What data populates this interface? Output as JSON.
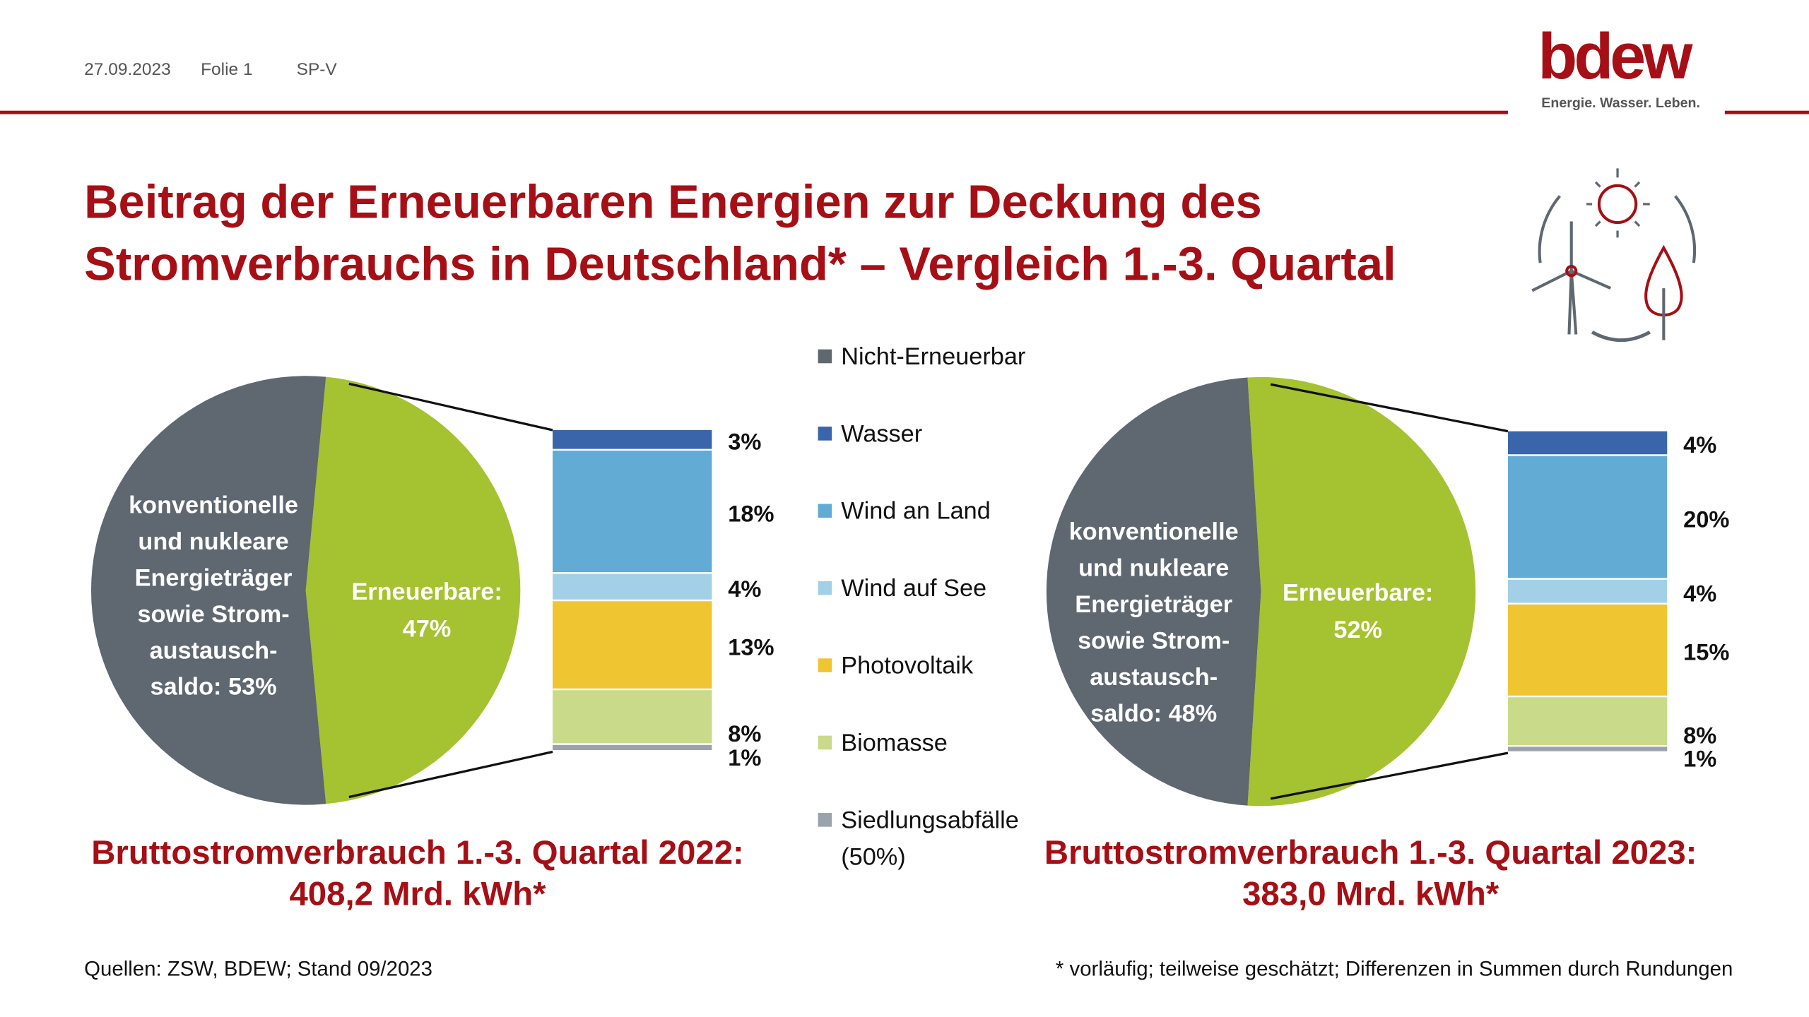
{
  "header": {
    "date": "27.09.2023",
    "slide": "Folie 1",
    "dept": "SP-V"
  },
  "logo": {
    "text": "bdew",
    "tagline": "Energie. Wasser. Leben.",
    "color": "#a50f15"
  },
  "title": {
    "line1": "Beitrag der Erneuerbaren Energien zur Deckung des",
    "line2": "Stromverbrauchs in Deutschland* – Vergleich 1.-3. Quartal"
  },
  "legend": [
    {
      "label": "Nicht-Erneuerbar",
      "color": "#5f6770"
    },
    {
      "label": "Wasser",
      "color": "#3a65ab"
    },
    {
      "label": "Wind an Land",
      "color": "#62abd5"
    },
    {
      "label": "Wind auf See",
      "color": "#a3d0e6"
    },
    {
      "label": "Photovoltaik",
      "color": "#efc532"
    },
    {
      "label": "Biomasse",
      "color": "#c9da8a"
    },
    {
      "label": "Siedlungsabfälle",
      "color": "#9aa2ae",
      "note": "(50%)"
    }
  ],
  "chart_data": [
    {
      "type": "pie",
      "year": "2022",
      "slices": [
        {
          "label": "konventionelle und nukleare Energieträger sowie Strom-austausch-saldo: 53%",
          "lines": [
            "konventionelle",
            "und nukleare",
            "Energieträger",
            "sowie Strom-",
            "austausch-",
            "saldo: 53%"
          ],
          "value": 53,
          "color": "#5f6770"
        },
        {
          "label": "Erneuerbare: 47%",
          "lines": [
            "Erneuerbare:",
            "47%"
          ],
          "value": 47,
          "color": "#a5c230"
        }
      ],
      "breakdown": {
        "type": "bar",
        "stacked": true,
        "categories": [
          "Wasser",
          "Wind an Land",
          "Wind auf See",
          "Photovoltaik",
          "Biomasse",
          "Siedlungsabfälle"
        ],
        "values": [
          3,
          18,
          4,
          13,
          8,
          1
        ],
        "labels": [
          "3%",
          "18%",
          "4%",
          "13%",
          "8%",
          "1%"
        ]
      },
      "caption": {
        "line1": "Bruttostromverbrauch 1.-3. Quartal 2022:",
        "line2": "408,2 Mrd. kWh*"
      }
    },
    {
      "type": "pie",
      "year": "2023",
      "slices": [
        {
          "label": "konventionelle und nukleare Energieträger sowie Strom-austausch-saldo: 48%",
          "lines": [
            "konventionelle",
            "und nukleare",
            "Energieträger",
            "sowie Strom-",
            "austausch-",
            "saldo: 48%"
          ],
          "value": 48,
          "color": "#5f6770"
        },
        {
          "label": "Erneuerbare: 52%",
          "lines": [
            "Erneuerbare:",
            "52%"
          ],
          "value": 52,
          "color": "#a5c230"
        }
      ],
      "breakdown": {
        "type": "bar",
        "stacked": true,
        "categories": [
          "Wasser",
          "Wind an Land",
          "Wind auf See",
          "Photovoltaik",
          "Biomasse",
          "Siedlungsabfälle"
        ],
        "values": [
          4,
          20,
          4,
          15,
          8,
          1
        ],
        "labels": [
          "4%",
          "20%",
          "4%",
          "15%",
          "8%",
          "1%"
        ]
      },
      "caption": {
        "line1": "Bruttostromverbrauch 1.-3. Quartal 2023:",
        "line2": "383,0 Mrd. kWh*"
      }
    }
  ],
  "footer": {
    "sources": "Quellen: ZSW, BDEW; Stand 09/2023",
    "note": "* vorläufig; teilweise geschätzt; Differenzen in Summen durch Rundungen"
  }
}
